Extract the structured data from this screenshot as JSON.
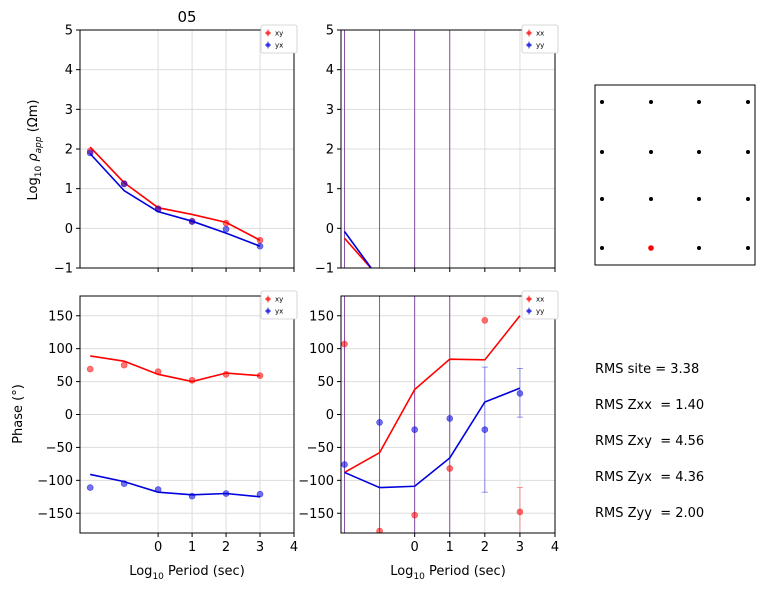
{
  "title": "05",
  "colors": {
    "xy": "#ff0000",
    "yx": "#0000dd",
    "xx": "#ff0000",
    "yy": "#0000dd",
    "grid": "#dddddd",
    "vline": "#7a3fa0",
    "station": "#000000",
    "station_active": "#ff0000"
  },
  "labels": {
    "rho_ylabel_pre": "Log",
    "rho_ylabel_sub": "10",
    "rho_ylabel_mid": " ρ",
    "rho_ylabel_app": "app",
    "rho_ylabel_unit": " (Ωm)",
    "phase_ylabel": "Phase (°)",
    "period_xlabel_pre": "Log",
    "period_xlabel_sub": "10",
    "period_xlabel_post": " Period (sec)"
  },
  "rms": [
    "RMS site = 3.38",
    "RMS Zxx  = 1.40",
    "RMS Zxy  = 4.56",
    "RMS Zyx  = 4.36",
    "RMS Zyy  = 2.00"
  ],
  "stations": {
    "grid": [
      [
        0,
        0
      ],
      [
        1,
        0
      ],
      [
        2,
        0
      ],
      [
        3,
        0
      ],
      [
        0,
        1
      ],
      [
        1,
        1
      ],
      [
        2,
        1
      ],
      [
        3,
        1
      ],
      [
        0,
        2
      ],
      [
        1,
        2
      ],
      [
        2,
        2
      ],
      [
        3,
        2
      ],
      [
        0,
        3
      ],
      [
        1,
        3
      ],
      [
        2,
        3
      ],
      [
        3,
        3
      ]
    ],
    "active": [
      1,
      3
    ]
  },
  "chart_data": [
    {
      "id": "rho_off",
      "type": "line",
      "xlim": [
        -2.3,
        4
      ],
      "ylim": [
        -1,
        5
      ],
      "xticks": [
        0,
        1,
        2,
        3,
        4
      ],
      "yticks": [
        -1,
        0,
        1,
        2,
        3,
        4,
        5
      ],
      "xticklabels_shown": false,
      "grid": true,
      "legend": "top-right",
      "series": [
        {
          "name": "xy",
          "color": "#ff0000",
          "points_x": [
            -2,
            -1,
            0,
            1,
            2,
            3
          ],
          "points_y": [
            1.95,
            1.13,
            0.5,
            0.18,
            0.13,
            -0.3
          ],
          "line_x": [
            -2,
            -1,
            0,
            1,
            2,
            3
          ],
          "line_y": [
            2.05,
            1.15,
            0.52,
            0.35,
            0.15,
            -0.3
          ]
        },
        {
          "name": "yx",
          "color": "#0000dd",
          "points_x": [
            -2,
            -1,
            0,
            1,
            2,
            3
          ],
          "points_y": [
            1.9,
            1.12,
            0.48,
            0.17,
            -0.02,
            -0.45
          ],
          "line_x": [
            -2,
            -1,
            0,
            1,
            2,
            3
          ],
          "line_y": [
            1.88,
            0.95,
            0.42,
            0.18,
            -0.12,
            -0.45
          ]
        }
      ]
    },
    {
      "id": "rho_diag",
      "type": "line",
      "xlim": [
        -2.1,
        4
      ],
      "ylim": [
        -1,
        5
      ],
      "xticks": [
        0,
        1,
        2,
        3,
        4
      ],
      "yticks": [
        -1,
        0,
        1,
        2,
        3,
        4,
        5
      ],
      "xticklabels_shown": false,
      "grid": true,
      "legend": "top-right",
      "vlines_x": [
        -2,
        -1,
        0,
        1
      ],
      "series": [
        {
          "name": "xx",
          "color": "#ff0000",
          "points_x": [],
          "points_y": [],
          "line_x": [
            -2,
            -1.15
          ],
          "line_y": [
            -0.25,
            -1.1
          ]
        },
        {
          "name": "yy",
          "color": "#0000dd",
          "points_x": [],
          "points_y": [],
          "line_x": [
            -2,
            -1.2
          ],
          "line_y": [
            -0.08,
            -1.05
          ]
        }
      ]
    },
    {
      "id": "phase_off",
      "type": "line",
      "xlim": [
        -2.3,
        4
      ],
      "ylim": [
        -180,
        180
      ],
      "xticks": [
        0,
        1,
        2,
        3,
        4
      ],
      "yticks": [
        -150,
        -100,
        -50,
        0,
        50,
        100,
        150
      ],
      "xticklabels_shown": true,
      "grid": true,
      "legend": "top-right",
      "series": [
        {
          "name": "xy",
          "color": "#ff0000",
          "points_x": [
            -2,
            -1,
            0,
            1,
            2,
            3
          ],
          "points_y": [
            69,
            75,
            65,
            52,
            61,
            59
          ],
          "line_x": [
            -2,
            -1,
            0,
            1,
            2,
            3
          ],
          "line_y": [
            89,
            81,
            61,
            50,
            63,
            59
          ]
        },
        {
          "name": "yx",
          "color": "#0000dd",
          "points_x": [
            -2,
            -1,
            0,
            1,
            2,
            3
          ],
          "points_y": [
            -111,
            -105,
            -114,
            -124,
            -120,
            -121
          ],
          "line_x": [
            -2,
            -1,
            0,
            1,
            2,
            3
          ],
          "line_y": [
            -91,
            -102,
            -118,
            -122,
            -120,
            -125
          ]
        }
      ]
    },
    {
      "id": "phase_diag",
      "type": "line",
      "xlim": [
        -2.1,
        4
      ],
      "ylim": [
        -180,
        180
      ],
      "xticks": [
        0,
        1,
        2,
        3,
        4
      ],
      "yticks": [
        -150,
        -100,
        -50,
        0,
        50,
        100,
        150
      ],
      "xticklabels_shown": true,
      "grid": true,
      "legend": "top-right",
      "vlines_x": [
        -2,
        -1,
        0,
        1
      ],
      "series": [
        {
          "name": "xx",
          "color": "#ff0000",
          "points_x": [
            -2,
            -1,
            0,
            1,
            2,
            3
          ],
          "points_y": [
            107,
            -177,
            -153,
            -82,
            143,
            -148
          ],
          "err_lo": [
            0,
            0,
            0,
            0,
            0,
            37
          ],
          "err_hi": [
            0,
            0,
            0,
            0,
            0,
            37
          ],
          "line_x": [
            -2,
            -1,
            0,
            1,
            2,
            3
          ],
          "line_y": [
            -88,
            -58,
            38,
            84,
            83,
            150
          ]
        },
        {
          "name": "yy",
          "color": "#0000dd",
          "points_x": [
            -2,
            -1,
            0,
            1,
            2,
            3
          ],
          "points_y": [
            -76,
            -12,
            -23,
            -6,
            -23,
            32
          ],
          "err_lo": [
            0,
            0,
            0,
            0,
            95,
            36
          ],
          "err_hi": [
            0,
            0,
            0,
            0,
            95,
            38
          ],
          "line_x": [
            -2,
            -1,
            0,
            1,
            2,
            3
          ],
          "line_y": [
            -88,
            -111,
            -109,
            -66,
            19,
            40
          ]
        }
      ]
    }
  ]
}
